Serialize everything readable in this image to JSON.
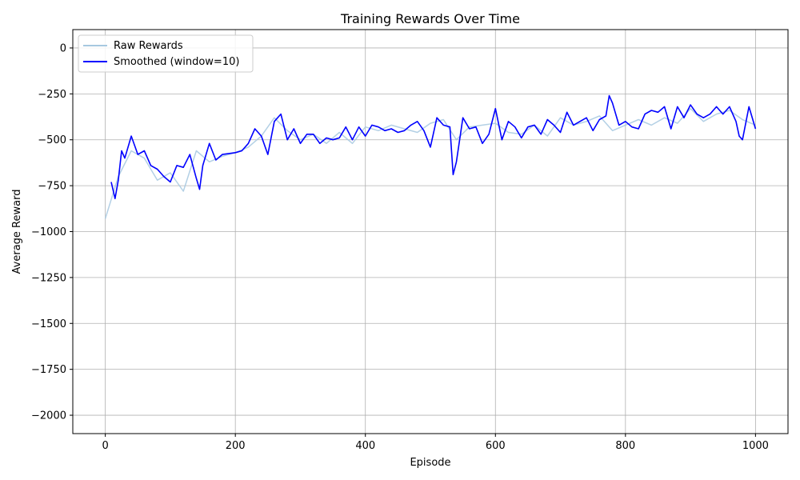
{
  "chart_data": {
    "type": "line",
    "title": "Training Rewards Over Time",
    "xlabel": "Episode",
    "ylabel": "Average Reward",
    "xlim": [
      -50,
      1050
    ],
    "ylim": [
      -2100,
      100
    ],
    "xticks": [
      0,
      200,
      400,
      600,
      800,
      1000
    ],
    "yticks": [
      0,
      -250,
      -500,
      -750,
      -1000,
      -1250,
      -1500,
      -1750,
      -2000
    ],
    "xtick_labels": [
      "0",
      "200",
      "400",
      "600",
      "800",
      "1000"
    ],
    "ytick_labels": [
      "0",
      "−250",
      "−500",
      "−750",
      "−1000",
      "−1250",
      "−1500",
      "−1750",
      "−2000"
    ],
    "grid": true,
    "legend_position": "upper-left",
    "series": [
      {
        "name": "Raw Rewards",
        "color": "#a6c8e0",
        "smoothing_window": 1,
        "x": [
          0,
          20,
          40,
          60,
          80,
          100,
          120,
          140,
          160,
          180,
          200,
          220,
          240,
          260,
          280,
          300,
          320,
          340,
          360,
          380,
          400,
          420,
          440,
          460,
          480,
          500,
          520,
          540,
          560,
          580,
          600,
          620,
          640,
          660,
          680,
          700,
          720,
          740,
          760,
          780,
          800,
          820,
          840,
          860,
          880,
          900,
          920,
          940,
          960,
          980,
          1000
        ],
        "values": [
          -930,
          -700,
          -560,
          -600,
          -720,
          -680,
          -780,
          -560,
          -620,
          -590,
          -570,
          -540,
          -480,
          -380,
          -450,
          -500,
          -470,
          -520,
          -460,
          -520,
          -430,
          -450,
          -420,
          -440,
          -460,
          -410,
          -390,
          -500,
          -430,
          -420,
          -410,
          -460,
          -470,
          -420,
          -480,
          -380,
          -420,
          -400,
          -370,
          -450,
          -420,
          -390,
          -420,
          -380,
          -410,
          -330,
          -400,
          -360,
          -340,
          -390,
          -420
        ]
      },
      {
        "name": "Smoothed (window=10)",
        "color": "#0000ff",
        "smoothing_window": 10,
        "x": [
          9,
          15,
          20,
          25,
          30,
          40,
          50,
          60,
          70,
          80,
          90,
          100,
          110,
          120,
          130,
          140,
          145,
          150,
          160,
          170,
          180,
          200,
          210,
          220,
          230,
          240,
          250,
          260,
          270,
          280,
          290,
          300,
          310,
          320,
          330,
          340,
          350,
          360,
          370,
          380,
          390,
          400,
          410,
          420,
          430,
          440,
          450,
          460,
          470,
          480,
          490,
          500,
          510,
          520,
          530,
          535,
          540,
          550,
          560,
          570,
          580,
          590,
          600,
          610,
          620,
          630,
          640,
          650,
          660,
          670,
          680,
          690,
          700,
          710,
          720,
          730,
          740,
          750,
          760,
          770,
          775,
          780,
          790,
          800,
          810,
          820,
          830,
          840,
          850,
          860,
          870,
          880,
          890,
          900,
          910,
          920,
          930,
          940,
          950,
          960,
          970,
          975,
          980,
          990,
          1000
        ],
        "values": [
          -730,
          -820,
          -720,
          -560,
          -600,
          -480,
          -580,
          -560,
          -640,
          -660,
          -700,
          -730,
          -640,
          -650,
          -580,
          -710,
          -770,
          -640,
          -520,
          -610,
          -580,
          -570,
          -560,
          -520,
          -440,
          -480,
          -580,
          -400,
          -360,
          -500,
          -440,
          -520,
          -470,
          -470,
          -520,
          -490,
          -500,
          -490,
          -430,
          -500,
          -430,
          -480,
          -420,
          -430,
          -450,
          -440,
          -460,
          -450,
          -420,
          -400,
          -450,
          -540,
          -380,
          -420,
          -430,
          -690,
          -620,
          -380,
          -440,
          -430,
          -520,
          -470,
          -330,
          -500,
          -400,
          -430,
          -490,
          -430,
          -420,
          -470,
          -390,
          -420,
          -460,
          -350,
          -420,
          -400,
          -380,
          -450,
          -390,
          -370,
          -260,
          -300,
          -420,
          -400,
          -430,
          -440,
          -360,
          -340,
          -350,
          -320,
          -440,
          -320,
          -380,
          -310,
          -360,
          -380,
          -360,
          -320,
          -360,
          -320,
          -400,
          -480,
          -500,
          -320,
          -440
        ]
      }
    ]
  }
}
